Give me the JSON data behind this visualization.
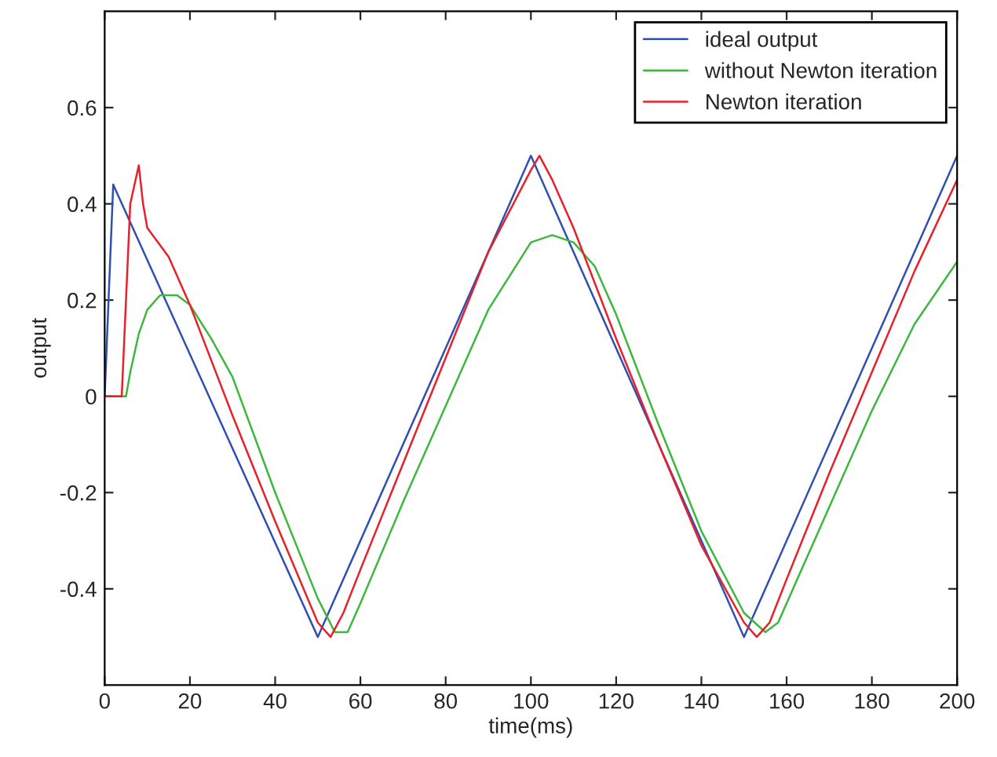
{
  "chart_data": {
    "type": "line",
    "xlabel": "time(ms)",
    "ylabel": "output",
    "xlim": [
      0,
      200
    ],
    "ylim": [
      -0.6,
      0.8
    ],
    "xticks": [
      0,
      20,
      40,
      60,
      80,
      100,
      120,
      140,
      160,
      180,
      200
    ],
    "yticks": [
      {
        "value": -0.4,
        "label": "-0.4"
      },
      {
        "value": -0.2,
        "label": "-0.2"
      },
      0,
      0.2,
      0.4,
      0.6
    ],
    "grid": false,
    "legend": "top right",
    "marker": "none",
    "line_style": "solid",
    "series": [
      {
        "name": "ideal output",
        "color": "#2f4fb5",
        "x": [
          0,
          2,
          50,
          100,
          150,
          200
        ],
        "values": [
          0,
          0.44,
          -0.5,
          0.5,
          -0.5,
          0.5
        ]
      },
      {
        "name": "without Newton iteration",
        "color": "#3cb83c",
        "x": [
          0,
          5,
          6,
          8,
          10,
          13,
          17,
          20,
          25,
          30,
          40,
          50,
          54,
          57,
          60,
          70,
          80,
          90,
          100,
          105,
          110,
          115,
          120,
          130,
          140,
          150,
          155,
          158,
          160,
          170,
          180,
          190,
          200
        ],
        "values": [
          0,
          0,
          0.05,
          0.13,
          0.18,
          0.21,
          0.21,
          0.19,
          0.12,
          0.04,
          -0.2,
          -0.42,
          -0.49,
          -0.49,
          -0.43,
          -0.22,
          -0.02,
          0.18,
          0.32,
          0.335,
          0.32,
          0.27,
          0.17,
          -0.06,
          -0.28,
          -0.45,
          -0.49,
          -0.47,
          -0.43,
          -0.23,
          -0.03,
          0.15,
          0.28
        ]
      },
      {
        "name": "Newton iteration",
        "color": "#e8202a",
        "x": [
          0,
          4,
          5,
          6,
          8,
          9,
          10,
          15,
          20,
          30,
          40,
          50,
          53,
          56,
          60,
          70,
          80,
          90,
          100,
          102,
          105,
          110,
          120,
          130,
          140,
          150,
          153,
          156,
          160,
          170,
          180,
          190,
          200
        ],
        "values": [
          0,
          0,
          0.2,
          0.4,
          0.48,
          0.4,
          0.35,
          0.29,
          0.19,
          -0.04,
          -0.26,
          -0.47,
          -0.5,
          -0.45,
          -0.36,
          -0.14,
          0.08,
          0.3,
          0.47,
          0.5,
          0.45,
          0.35,
          0.12,
          -0.1,
          -0.31,
          -0.47,
          -0.5,
          -0.47,
          -0.38,
          -0.16,
          0.05,
          0.26,
          0.45
        ]
      }
    ]
  }
}
